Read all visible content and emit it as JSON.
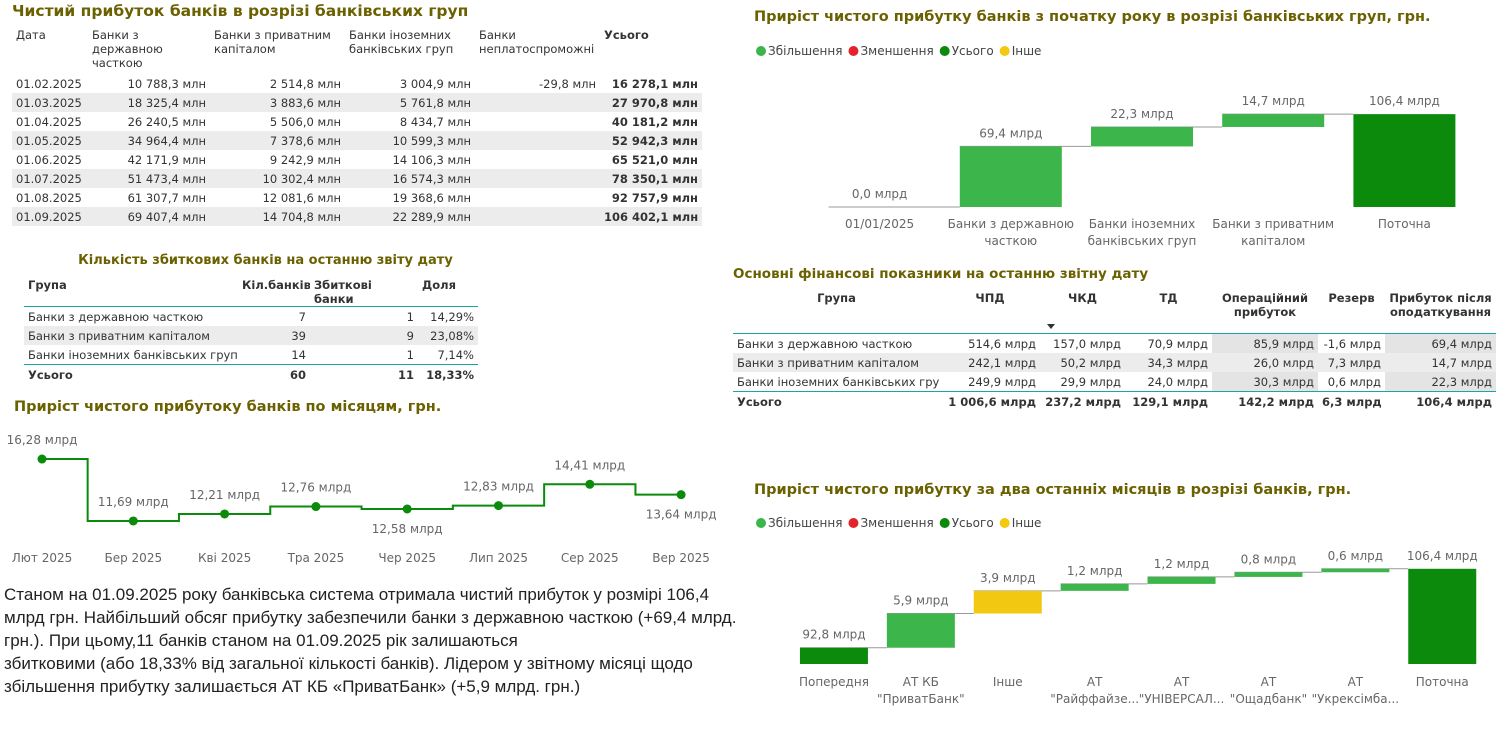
{
  "tables": [
    {
      "title": "Чистий прибуток банків в розрізі банківських груп",
      "columns": [
        "Дата",
        "Банки з державною часткою",
        "Банки з приватним капіталом",
        "Банки іноземних банківських груп",
        "Банки неплатоспроможні",
        "Усього"
      ],
      "rows": [
        [
          "01.02.2025",
          "10 788,3 млн",
          "2 514,8 млн",
          "3 004,9 млн",
          "-29,8 млн",
          "16 278,1 млн"
        ],
        [
          "01.03.2025",
          "18 325,4 млн",
          "3 883,6 млн",
          "5 761,8 млн",
          null,
          "27 970,8 млн"
        ],
        [
          "01.04.2025",
          "26 240,5 млн",
          "5 506,0 млн",
          "8 434,7 млн",
          null,
          "40 181,2 млн"
        ],
        [
          "01.05.2025",
          "34 964,4 млн",
          "7 378,6 млн",
          "10 599,3 млн",
          null,
          "52 942,3 млн"
        ],
        [
          "01.06.2025",
          "42 171,9 млн",
          "9 242,9 млн",
          "14 106,3 млн",
          null,
          "65 521,0 млн"
        ],
        [
          "01.07.2025",
          "51 473,4 млн",
          "10 302,4 млн",
          "16 574,3 млн",
          null,
          "78 350,1 млн"
        ],
        [
          "01.08.2025",
          "61 307,7 млн",
          "12 081,6 млн",
          "19 368,6 млн",
          null,
          "92 757,9 млн"
        ],
        [
          "01.09.2025",
          "69 407,4 млн",
          "14 704,8 млн",
          "22 289,9 млн",
          null,
          "106 402,1 млн"
        ]
      ]
    },
    {
      "title": "Кількість збиткових банків на останню звіту дату",
      "columns": [
        "Група",
        "Кіл.банків",
        "Збиткові банки",
        "Доля"
      ],
      "rows": [
        [
          "Банки з державною часткою",
          7,
          1,
          "14,29%"
        ],
        [
          "Банки з приватним капіталом",
          39,
          9,
          "23,08%"
        ],
        [
          "Банки іноземних банківських груп",
          14,
          1,
          "7,14%"
        ]
      ],
      "total": [
        "Усього",
        60,
        11,
        "18,33%"
      ]
    },
    {
      "title": "Основні фінансові показники на останню звітну дату",
      "columns": [
        "Група",
        "ЧПД",
        "ЧКД",
        "ТД",
        "Операційний прибуток",
        "Резерв",
        "Прибуток після оподаткування"
      ],
      "rows": [
        [
          "Банки з державною часткою",
          "514,6 млрд",
          "157,0 млрд",
          "70,9 млрд",
          "85,9 млрд",
          "-1,6 млрд",
          "69,4 млрд"
        ],
        [
          "Банки з приватним капіталом",
          "242,1 млрд",
          "50,2 млрд",
          "34,3 млрд",
          "26,0 млрд",
          "7,3 млрд",
          "14,7 млрд"
        ],
        [
          "Банки іноземних банківських груп",
          "249,9 млрд",
          "29,9 млрд",
          "24,0 млрд",
          "30,3 млрд",
          "0,6 млрд",
          "22,3 млрд"
        ]
      ],
      "total": [
        "Усього",
        "1 006,6 млрд",
        "237,2 млрд",
        "129,1 млрд",
        "142,2 млрд",
        "6,3 млрд",
        "106,4 млрд"
      ]
    }
  ],
  "text": [
    "Станом на 01.09.2025 року банківська система отримала чистий прибуток у розмірі 106,4 млрд грн. Найбільший обсяг прибутку забезпечили банки з державною часткою (+69,4 млрд. грн.). При цьому,11 банків станом на 01.09.2025 рік залишаються",
    "збитковими (або 18,33% від загальної кількості банків). Лідером у звітному місяці щодо збільшення прибутку залишається АТ КБ «ПриватБанк» (+5,9 млрд. грн.)"
  ],
  "chart_data": [
    {
      "type": "waterfall",
      "title": "Приріст чистого прибутку банків з початку року в розрізі банківських груп, грн.",
      "legend": [
        {
          "name": "Збільшення",
          "color": "#3cb64a"
        },
        {
          "name": "Зменшення",
          "color": "#e3232b"
        },
        {
          "name": "Усього",
          "color": "#0b8a0b"
        },
        {
          "name": "Інше",
          "color": "#f2c811"
        }
      ],
      "categories": [
        "01/01/2025",
        "Банки з державною часткою",
        "Банки іноземних банківських груп",
        "Банки з приватним капіталом",
        "Поточна"
      ],
      "values": [
        0,
        69.4,
        22.3,
        14.7,
        106.4
      ],
      "value_labels": [
        "0,0 млрд",
        "69,4 млрд",
        "22,3 млрд",
        "14,7 млрд",
        "106,4 млрд"
      ],
      "colors": [
        "#0b8a0b",
        "#3cb64a",
        "#3cb64a",
        "#3cb64a",
        "#0b8a0b"
      ],
      "ylim": [
        0,
        110
      ]
    },
    {
      "type": "line",
      "title": "Приріст чистого прибутоку банків по місяцям, грн.",
      "categories": [
        "Лют 2025",
        "Бер 2025",
        "Кві 2025",
        "Тра 2025",
        "Чер 2025",
        "Лип 2025",
        "Сер 2025",
        "Вер 2025"
      ],
      "values": [
        16.28,
        11.69,
        12.21,
        12.76,
        12.58,
        12.83,
        14.41,
        13.64
      ],
      "value_labels": [
        "16,28 млрд",
        "11,69 млрд",
        "12,21 млрд",
        "12,76 млрд",
        "12,58 млрд",
        "12,83 млрд",
        "14,41 млрд",
        "13,64 млрд"
      ],
      "color": "#0b8a0b",
      "ylim": [
        11,
        17
      ]
    },
    {
      "type": "waterfall",
      "title": "Приріст чистого прибутку за два останніх місяців в розрізі банків, грн.",
      "legend": [
        {
          "name": "Збільшення",
          "color": "#3cb64a"
        },
        {
          "name": "Зменшення",
          "color": "#e3232b"
        },
        {
          "name": "Усього",
          "color": "#0b8a0b"
        },
        {
          "name": "Інше",
          "color": "#f2c811"
        }
      ],
      "categories": [
        "Попередня",
        "АТ КБ \"ПриватБанк\"",
        "Інше",
        "АТ \"Райффайзе...",
        "АТ \"УНІВЕРСАЛ...",
        "АТ \"Ощадбанк\"",
        "АТ \"Укрексімба...",
        "Поточна"
      ],
      "values": [
        92.8,
        5.9,
        3.9,
        1.2,
        1.2,
        0.8,
        0.6,
        106.4
      ],
      "value_labels": [
        "92,8 млрд",
        "5,9 млрд",
        "3,9 млрд",
        "1,2 млрд",
        "1,2 млрд",
        "0,8 млрд",
        "0,6 млрд",
        "106,4 млрд"
      ],
      "colors": [
        "#0b8a0b",
        "#3cb64a",
        "#f2c811",
        "#3cb64a",
        "#3cb64a",
        "#3cb64a",
        "#3cb64a",
        "#0b8a0b"
      ],
      "ylim": [
        90,
        108
      ]
    }
  ]
}
